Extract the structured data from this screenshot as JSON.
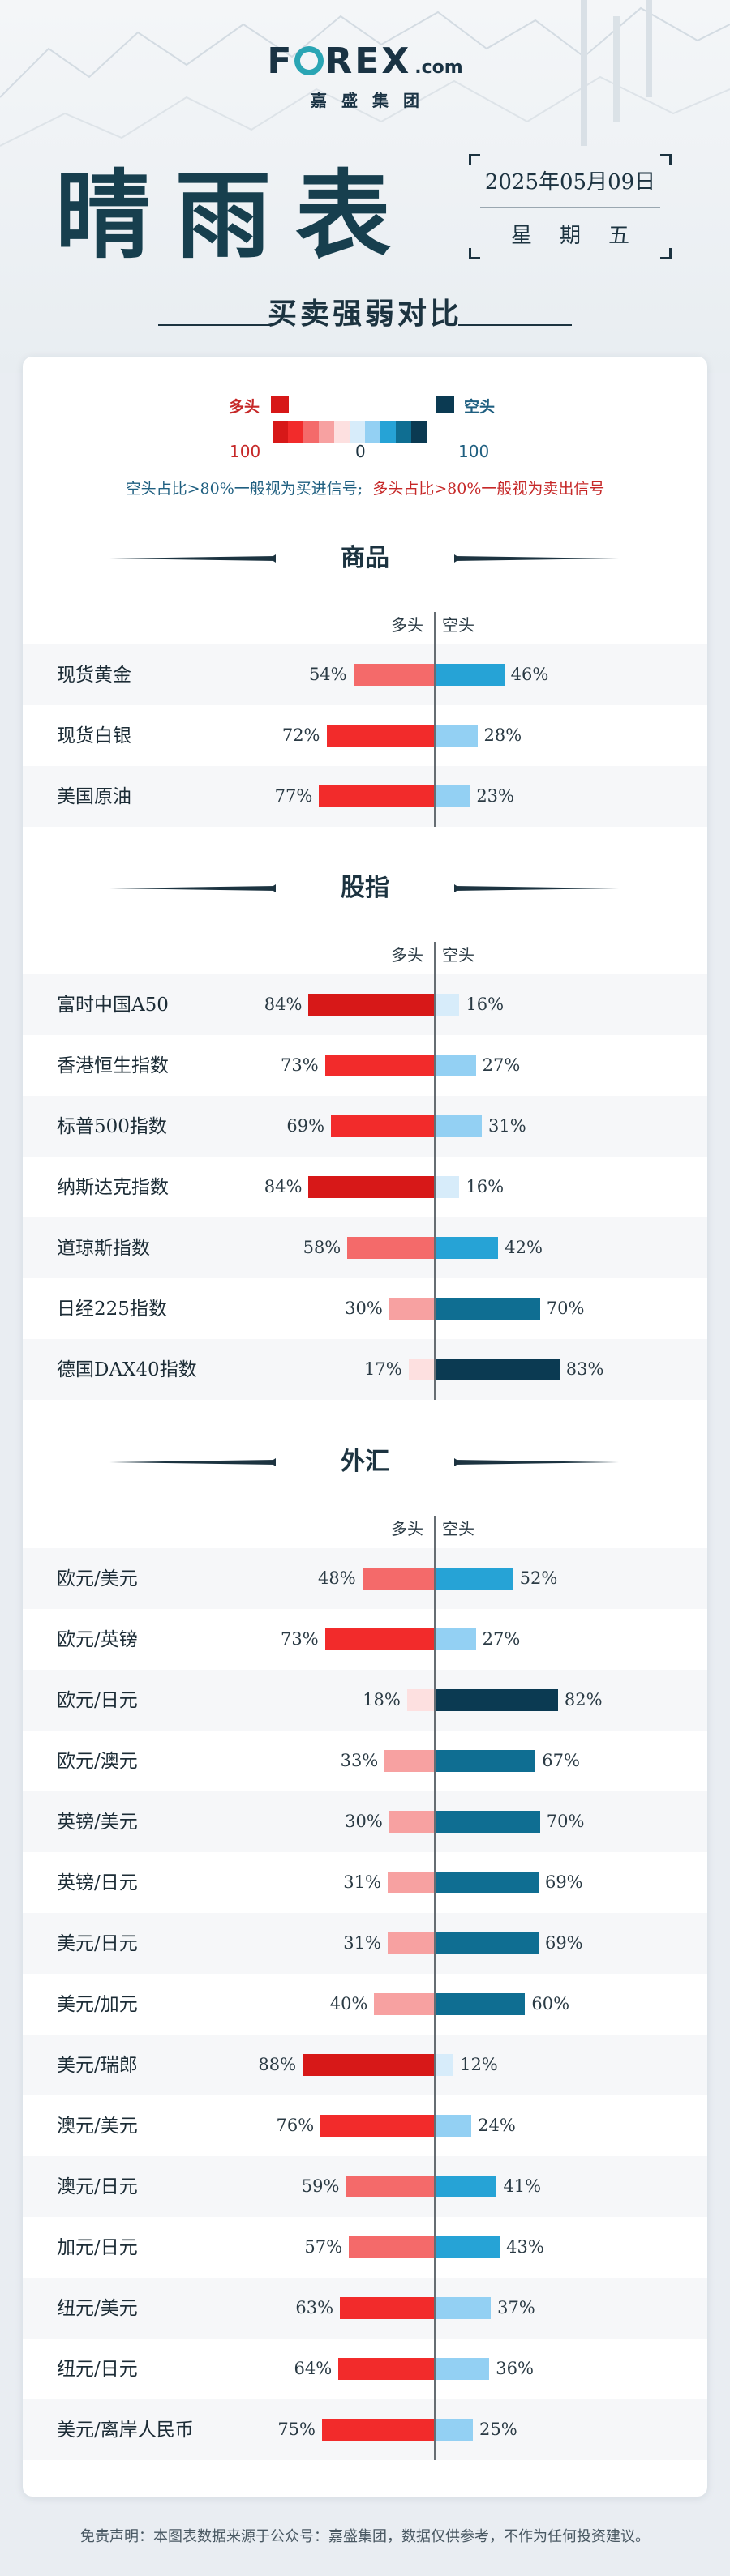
{
  "logo": {
    "word_f": "F",
    "word_rest": "REX",
    "dotcom": ".com",
    "sub": "嘉盛集团"
  },
  "title": "晴雨表",
  "date": "2025年05月09日",
  "weekday": "星期五",
  "subtitle": "买卖强弱对比",
  "legend": {
    "long_label": "多头",
    "short_label": "空头",
    "left_num": "100",
    "mid_num": "0",
    "right_num": "100",
    "signal_short": "空头占比>80%一般视为买进信号;",
    "signal_long": "多头占比>80%一般视为卖出信号"
  },
  "colors": {
    "long_scale": [
      "#d71818",
      "#f22b2b",
      "#f46a6a",
      "#f7a1a1",
      "#fde0e0"
    ],
    "short_scale": [
      "#d7ecfa",
      "#93d0f3",
      "#26a3d6",
      "#0f6e92",
      "#0b3a52"
    ],
    "text_long": "#c62828",
    "text_short": "#1f5f80"
  },
  "column_heads": {
    "long": "多头",
    "short": "空头"
  },
  "sections": [
    {
      "title": "商品",
      "rows": [
        {
          "name": "现货黄金",
          "long": 54,
          "short": 46
        },
        {
          "name": "现货白银",
          "long": 72,
          "short": 28
        },
        {
          "name": "美国原油",
          "long": 77,
          "short": 23
        }
      ]
    },
    {
      "title": "股指",
      "rows": [
        {
          "name": "富时中国A50",
          "long": 84,
          "short": 16
        },
        {
          "name": "香港恒生指数",
          "long": 73,
          "short": 27
        },
        {
          "name": "标普500指数",
          "long": 69,
          "short": 31
        },
        {
          "name": "纳斯达克指数",
          "long": 84,
          "short": 16
        },
        {
          "name": "道琼斯指数",
          "long": 58,
          "short": 42
        },
        {
          "name": "日经225指数",
          "long": 30,
          "short": 70
        },
        {
          "name": "德国DAX40指数",
          "long": 17,
          "short": 83
        }
      ]
    },
    {
      "title": "外汇",
      "rows": [
        {
          "name": "欧元/美元",
          "long": 48,
          "short": 52
        },
        {
          "name": "欧元/英镑",
          "long": 73,
          "short": 27
        },
        {
          "name": "欧元/日元",
          "long": 18,
          "short": 82
        },
        {
          "name": "欧元/澳元",
          "long": 33,
          "short": 67
        },
        {
          "name": "英镑/美元",
          "long": 30,
          "short": 70
        },
        {
          "name": "英镑/日元",
          "long": 31,
          "short": 69
        },
        {
          "name": "美元/日元",
          "long": 31,
          "short": 69
        },
        {
          "name": "美元/加元",
          "long": 40,
          "short": 60
        },
        {
          "name": "美元/瑞郎",
          "long": 88,
          "short": 12
        },
        {
          "name": "澳元/美元",
          "long": 76,
          "short": 24
        },
        {
          "name": "澳元/日元",
          "long": 59,
          "short": 41
        },
        {
          "name": "加元/日元",
          "long": 57,
          "short": 43
        },
        {
          "name": "纽元/美元",
          "long": 63,
          "short": 37
        },
        {
          "name": "纽元/日元",
          "long": 64,
          "short": 36
        },
        {
          "name": "美元/离岸人民币",
          "long": 75,
          "short": 25
        }
      ]
    }
  ],
  "footer": "免责声明：本图表数据来源于公众号：嘉盛集团，数据仅供参考，不作为任何投资建议。"
}
